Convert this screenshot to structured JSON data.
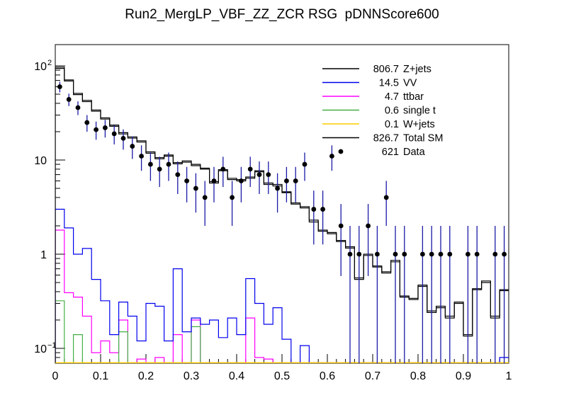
{
  "title": "Run2_MergLP_VBF_ZZ_ZCR RSG  pDNNScore600",
  "colors": {
    "frame": "#000000",
    "z_jets": "#000000",
    "vv": "#0000ee",
    "ttbar": "#ff00ff",
    "single_t": "#45b045",
    "w_jets": "#ffcc00",
    "total_sm": "#000000",
    "data_marker": "#000000",
    "data_error_bar": "#1a1aa6"
  },
  "legend": {
    "entries": [
      {
        "yield": "806.7",
        "label": "Z+jets",
        "color": "#000000",
        "style": "line"
      },
      {
        "yield": "14.5",
        "label": "VV",
        "color": "#0000ee",
        "style": "line"
      },
      {
        "yield": "4.7",
        "label": "ttbar",
        "color": "#ff00ff",
        "style": "line"
      },
      {
        "yield": "0.6",
        "label": "single t",
        "color": "#45b045",
        "style": "line"
      },
      {
        "yield": "0.1",
        "label": "W+jets",
        "color": "#ffcc00",
        "style": "line"
      },
      {
        "yield": "826.7",
        "label": "Total SM",
        "color": "#000000",
        "style": "line"
      },
      {
        "yield": "621",
        "label": "Data",
        "color": "#000000",
        "style": "marker"
      }
    ]
  },
  "axes": {
    "x_tick_labels": [
      "0",
      "0.1",
      "0.2",
      "0.3",
      "0.4",
      "0.5",
      "0.6",
      "0.7",
      "0.8",
      "0.9",
      "1"
    ],
    "y_tick_labels": [
      {
        "base": "10",
        "exp": "2",
        "value": 100
      },
      {
        "base": "10",
        "exp": "",
        "value": 10
      },
      {
        "base": "1",
        "exp": "",
        "value": 1
      },
      {
        "base": "10",
        "exp": "−1",
        "value": 0.1
      }
    ]
  },
  "chart_data": {
    "type": "bar",
    "subtype": "step-histogram-with-data-points",
    "title": "Run2_MergLP_VBF_ZZ_ZCR RSG  pDNNScore600",
    "xlabel": "",
    "ylabel": "",
    "x_range": [
      0,
      1
    ],
    "n_bins": 50,
    "bin_width": 0.02,
    "y_scale": "log",
    "y_range": [
      0.0693,
      168
    ],
    "grid": false,
    "legend_position": "top-right",
    "series": [
      {
        "name": "Z+jets",
        "yield": 806.7,
        "color": "#000000",
        "values": [
          94,
          69,
          49.5,
          41.7,
          33,
          27.2,
          22.8,
          18.9,
          17.1,
          15.5,
          11.8,
          10.3,
          11,
          9.1,
          9.5,
          8.7,
          8,
          5.7,
          7.7,
          6.2,
          6,
          6.4,
          7.5,
          5.5,
          5.3,
          4.5,
          3.4,
          3.1,
          2.2,
          1.75,
          1.65,
          1.36,
          1.16,
          0.54,
          0.97,
          0.73,
          0.63,
          0.83,
          0.35,
          0.34,
          0.455,
          0.24,
          0.27,
          0.21,
          0.3,
          0.135,
          0.42,
          0.5,
          0.21,
          0.41
        ]
      },
      {
        "name": "VV",
        "yield": 14.5,
        "color": "#0000ee",
        "values": [
          3.0,
          1.9,
          1.0,
          1.15,
          0.54,
          0.32,
          0.14,
          0.31,
          0.22,
          0.12,
          0.3,
          0.28,
          0.12,
          0.7,
          0.15,
          0.21,
          0.18,
          0.2,
          0.13,
          0.21,
          0.14,
          0.55,
          0.3,
          0.18,
          0.27,
          0.125,
          0,
          0.107,
          0,
          0,
          0,
          0,
          0,
          0,
          0,
          0,
          0.07,
          0,
          0,
          0,
          0,
          0,
          0,
          0,
          0,
          0,
          0,
          0,
          0,
          0.08
        ]
      },
      {
        "name": "ttbar",
        "yield": 4.7,
        "color": "#ff00ff",
        "values": [
          1.8,
          0.39,
          0.35,
          0.22,
          0.09,
          0.12,
          0.09,
          0.2,
          0,
          0.077,
          0,
          0.08,
          0,
          0.14,
          0,
          0.2,
          0,
          0,
          0.06,
          0,
          0,
          0.21,
          0.08,
          0.077,
          0,
          0,
          0,
          0,
          0,
          0,
          0,
          0,
          0,
          0,
          0,
          0,
          0,
          0,
          0,
          0,
          0,
          0,
          0,
          0,
          0,
          0,
          0,
          0,
          0,
          0
        ]
      },
      {
        "name": "single t",
        "yield": 0.6,
        "color": "#45b045",
        "values": [
          0.32,
          0,
          0.14,
          0,
          0,
          0,
          0,
          0.15,
          0,
          0,
          0,
          0,
          0,
          0,
          0,
          0.17,
          0,
          0,
          0,
          0,
          0,
          0,
          0,
          0,
          0,
          0,
          0,
          0,
          0,
          0,
          0,
          0,
          0,
          0,
          0,
          0,
          0,
          0,
          0,
          0,
          0,
          0,
          0,
          0,
          0,
          0,
          0,
          0,
          0,
          0
        ]
      },
      {
        "name": "W+jets",
        "yield": 0.1,
        "color": "#ffcc00",
        "values": [
          0.002,
          0.002,
          0.002,
          0.002,
          0.002,
          0.002,
          0.002,
          0.002,
          0.002,
          0.002,
          0.002,
          0.002,
          0.002,
          0.002,
          0.002,
          0.002,
          0.002,
          0.002,
          0.002,
          0.002,
          0.002,
          0.002,
          0.002,
          0.002,
          0.002,
          0.002,
          0.002,
          0.002,
          0.002,
          0.002,
          0.002,
          0.002,
          0.002,
          0.002,
          0.002,
          0.002,
          0.002,
          0.002,
          0.002,
          0.002,
          0.002,
          0.002,
          0.002,
          0.002,
          0.002,
          0.002,
          0.002,
          0.002,
          0.002,
          0.002
        ]
      },
      {
        "name": "Total SM",
        "yield": 826.7,
        "color": "#000000",
        "values": [
          97,
          71,
          51,
          43,
          34,
          28,
          23.5,
          19.5,
          17.6,
          16,
          12.2,
          10.6,
          11.3,
          9.4,
          9.8,
          9.0,
          8.2,
          5.9,
          7.9,
          6.4,
          6.2,
          6.6,
          7.7,
          5.7,
          5.5,
          4.6,
          3.5,
          3.2,
          2.3,
          1.8,
          1.7,
          1.4,
          1.2,
          0.56,
          1.0,
          0.75,
          0.65,
          0.86,
          0.36,
          0.33,
          0.47,
          0.25,
          0.28,
          0.22,
          0.31,
          0.14,
          0.43,
          0.52,
          0.22,
          0.42
        ]
      }
    ],
    "data_points": {
      "name": "Data",
      "yield": 621,
      "marker": "filled-circle",
      "error_bars": "poisson-sqrt-n",
      "values": [
        60,
        44,
        36,
        25,
        21,
        22,
        19,
        17,
        14,
        11,
        9,
        8,
        9,
        7,
        6,
        5,
        4,
        6,
        8,
        4,
        6,
        8,
        7,
        7,
        5,
        6,
        6,
        9,
        3,
        3,
        11,
        2,
        1,
        1,
        2,
        1,
        4,
        1,
        1,
        0,
        1,
        1,
        1,
        1,
        0,
        1,
        1,
        0,
        1,
        1
      ]
    }
  }
}
